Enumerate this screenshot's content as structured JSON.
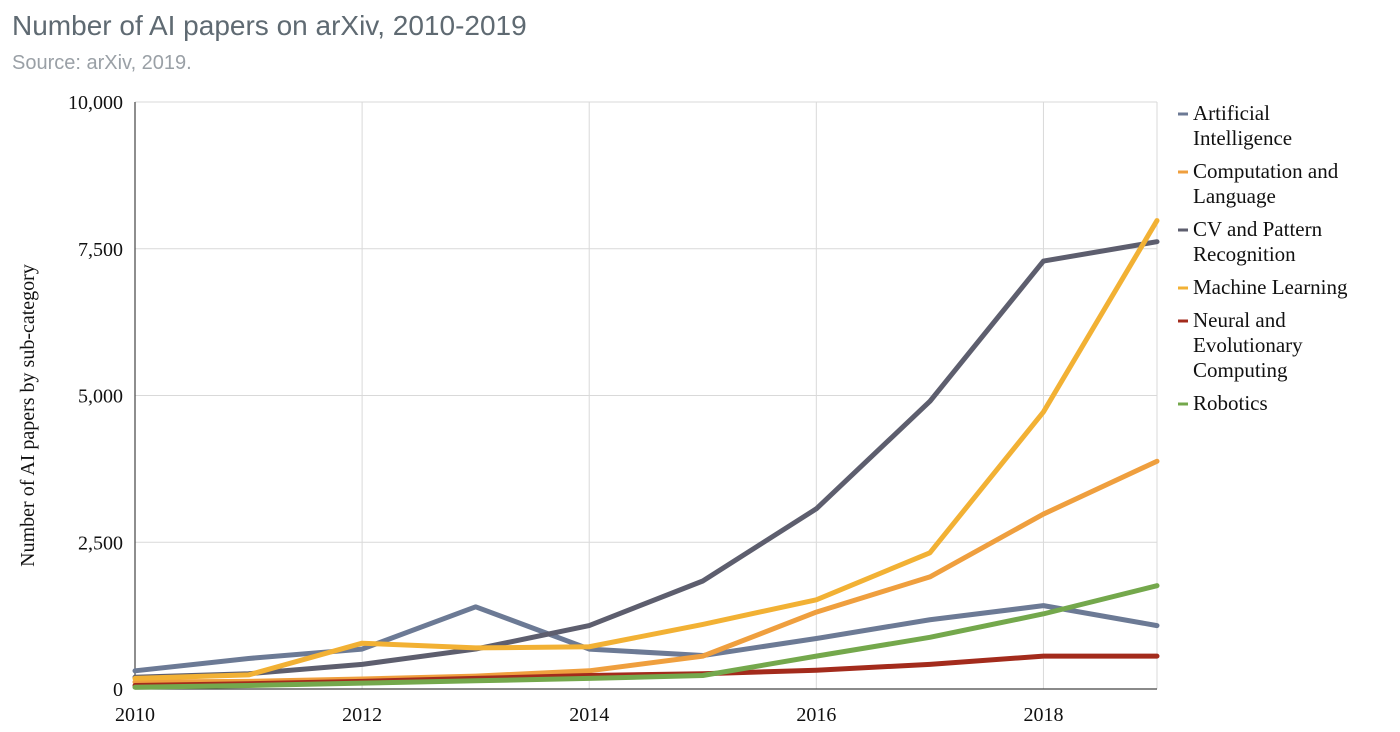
{
  "title": "Number of AI papers on arXiv, 2010-2019",
  "subtitle": "Source: arXiv, 2019.",
  "chart_data": {
    "type": "line",
    "title": "Number of AI papers on arXiv, 2010-2019",
    "subtitle": "Source: arXiv, 2019.",
    "xlabel": "",
    "ylabel": "Number of AI papers by sub-category",
    "x": [
      2010,
      2011,
      2012,
      2013,
      2014,
      2015,
      2016,
      2017,
      2018,
      2019
    ],
    "xlim": [
      2010,
      2019
    ],
    "ylim": [
      0,
      10000
    ],
    "x_ticks": [
      2010,
      2012,
      2014,
      2016,
      2018
    ],
    "x_tick_labels": [
      "2010",
      "2012",
      "2014",
      "2016",
      "2018"
    ],
    "y_ticks": [
      0,
      2500,
      5000,
      7500,
      10000
    ],
    "y_tick_labels": [
      "0",
      "2,500",
      "5,000",
      "7,500",
      "10,000"
    ],
    "grid": true,
    "legend_position": "right",
    "series": [
      {
        "name": "Artificial Intelligence",
        "legend_lines": [
          "Artificial",
          "Intelligence"
        ],
        "color": "#6c7a95",
        "values": [
          310,
          520,
          680,
          1400,
          680,
          570,
          860,
          1180,
          1420,
          1080
        ]
      },
      {
        "name": "Computation and Language",
        "legend_lines": [
          "Computation and",
          "Language"
        ],
        "color": "#ef9f3e",
        "values": [
          120,
          130,
          170,
          220,
          310,
          560,
          1310,
          1910,
          2980,
          3880
        ]
      },
      {
        "name": "CV and Pattern Recognition",
        "legend_lines": [
          "CV and Pattern",
          "Recognition"
        ],
        "color": "#5d5e6e",
        "values": [
          200,
          260,
          420,
          680,
          1080,
          1840,
          3070,
          4900,
          7290,
          7620
        ]
      },
      {
        "name": "Machine Learning",
        "legend_lines": [
          "Machine Learning"
        ],
        "color": "#f2b134",
        "values": [
          180,
          240,
          780,
          700,
          720,
          1100,
          1520,
          2320,
          4720,
          7980
        ]
      },
      {
        "name": "Neural and Evolutionary Computing",
        "legend_lines": [
          "Neural and",
          "Evolutionary",
          "Computing"
        ],
        "color": "#a32b1c",
        "values": [
          60,
          90,
          130,
          180,
          230,
          260,
          320,
          420,
          560,
          560
        ]
      },
      {
        "name": "Robotics",
        "legend_lines": [
          "Robotics"
        ],
        "color": "#74a84c",
        "values": [
          30,
          60,
          100,
          140,
          180,
          230,
          560,
          880,
          1280,
          1760
        ]
      }
    ]
  }
}
